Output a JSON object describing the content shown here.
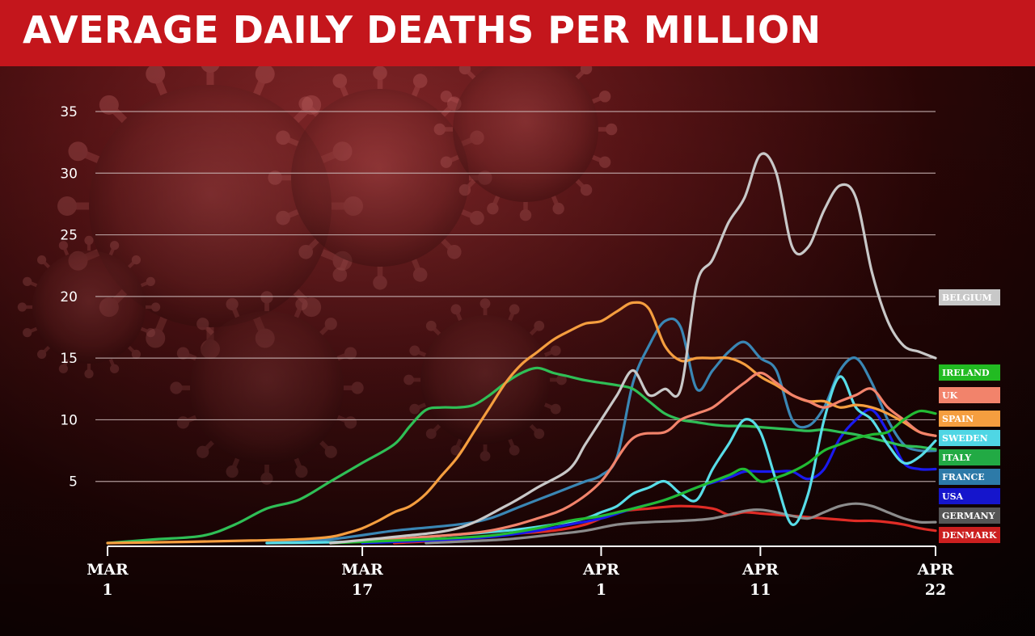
{
  "title": "AVERAGE DAILY DEATHS PER MILLION",
  "colors": {
    "title_bar": "#c4161c",
    "gridline": "#c8b4b4"
  },
  "chart_data": {
    "type": "line",
    "title": "AVERAGE DAILY DEATHS PER MILLION",
    "xlabel": "",
    "ylabel": "",
    "x_ticks": [
      {
        "day": 0,
        "line1": "MAR",
        "line2": "1"
      },
      {
        "day": 16,
        "line1": "MAR",
        "line2": "17"
      },
      {
        "day": 31,
        "line1": "APR",
        "line2": "1"
      },
      {
        "day": 41,
        "line1": "APR",
        "line2": "11"
      },
      {
        "day": 52,
        "line1": "APR",
        "line2": "22"
      }
    ],
    "y_ticks": [
      5,
      10,
      15,
      20,
      25,
      30,
      35
    ],
    "ylim": [
      0,
      35
    ],
    "xlim": [
      0,
      52
    ],
    "grid": true,
    "legend_position": "right",
    "series": [
      {
        "name": "BELGIUM",
        "color": "#c8c8c8",
        "label_color": "#c8c8c8",
        "label_text": "#ffffff",
        "x": [
          14,
          18,
          22,
          25,
          27,
          29,
          30,
          31,
          32,
          33,
          34,
          35,
          36,
          37,
          38,
          39,
          40,
          41,
          42,
          43,
          44,
          45,
          46,
          47,
          48,
          49,
          50,
          51,
          52
        ],
        "y": [
          0,
          0.5,
          1.2,
          3,
          4.5,
          6,
          8,
          10,
          12,
          14,
          12,
          12.5,
          12.5,
          21,
          23,
          26,
          28,
          31.5,
          30,
          24,
          24,
          27,
          29,
          28,
          22,
          18,
          16,
          15.5,
          15
        ]
      },
      {
        "name": "IRELAND",
        "color": "#22bb33",
        "label_color": "#22bb22",
        "label_text": "#ffffff",
        "x": [
          14,
          20,
          24,
          27,
          29,
          30,
          31,
          33,
          35,
          37,
          39,
          40,
          41,
          42,
          43,
          44,
          45,
          46,
          47,
          48,
          49,
          50,
          51,
          52
        ],
        "y": [
          0,
          0.3,
          0.6,
          1.2,
          1.8,
          2,
          2.2,
          2.8,
          3.5,
          4.5,
          5.5,
          6,
          5,
          5.3,
          5.8,
          6.5,
          7.5,
          8,
          8.5,
          8.8,
          9,
          10,
          10.7,
          10.5
        ]
      },
      {
        "name": "UK",
        "color": "#f2836b",
        "label_color": "#f2836b",
        "label_text": "#ffffff",
        "x": [
          14,
          20,
          24,
          27,
          29,
          31,
          33,
          35,
          36,
          37,
          38,
          39,
          40,
          41,
          42,
          43,
          44,
          45,
          46,
          47,
          48,
          49,
          50,
          51,
          52
        ],
        "y": [
          0,
          0.5,
          1,
          2,
          3,
          5,
          8.5,
          9,
          10,
          10.5,
          11,
          12,
          13,
          13.8,
          13,
          12,
          11.5,
          11,
          11.5,
          12,
          12.5,
          11,
          10,
          9,
          8.7
        ]
      },
      {
        "name": "SPAIN",
        "color": "#f59e3f",
        "label_color": "#f59e3f",
        "label_text": "#ffffff",
        "x": [
          0,
          5,
          9,
          12,
          14,
          15,
          16,
          17,
          18,
          19,
          20,
          21,
          22,
          23,
          24,
          25,
          26,
          27,
          28,
          29,
          30,
          31,
          32,
          33,
          34,
          35,
          36,
          37,
          38,
          39,
          40,
          41,
          42,
          43,
          44,
          45,
          46,
          47,
          48,
          49,
          50,
          51,
          52
        ],
        "y": [
          0,
          0.1,
          0.2,
          0.3,
          0.5,
          0.8,
          1.2,
          1.8,
          2.5,
          3,
          4,
          5.5,
          7,
          9,
          11,
          13,
          14.5,
          15.5,
          16.5,
          17.2,
          17.8,
          18,
          18.8,
          19.5,
          19,
          16,
          14.8,
          15,
          15,
          15,
          14.5,
          13.5,
          12.8,
          12,
          11.5,
          11.5,
          11,
          11.2,
          11,
          10.5,
          9.8,
          9,
          8.7
        ]
      },
      {
        "name": "SWEDEN",
        "color": "#58dde8",
        "label_color": "#4fd6e4",
        "label_text": "#ffffff",
        "x": [
          10,
          15,
          20,
          25,
          28,
          30,
          31,
          32,
          33,
          34,
          35,
          36,
          37,
          38,
          39,
          40,
          41,
          42,
          43,
          44,
          45,
          46,
          47,
          48,
          49,
          50,
          51,
          52
        ],
        "y": [
          0,
          0.1,
          0.5,
          1,
          1.5,
          2,
          2.5,
          3,
          4,
          4.5,
          5,
          4,
          3.5,
          6,
          8,
          10,
          9,
          5,
          1.5,
          4,
          10,
          13.5,
          11,
          10,
          8,
          6.5,
          7,
          8.3
        ]
      },
      {
        "name": "ITALY",
        "color": "#2fbf56",
        "label_color": "#22aa44",
        "label_text": "#ffffff",
        "x": [
          0,
          3,
          6,
          8,
          10,
          12,
          14,
          16,
          18,
          19,
          20,
          21,
          22,
          23,
          24,
          25,
          26,
          27,
          28,
          29,
          30,
          31,
          32,
          33,
          34,
          35,
          36,
          37,
          38,
          39,
          40,
          41,
          42,
          43,
          44,
          45,
          46,
          47,
          48,
          49,
          50,
          51,
          52
        ],
        "y": [
          0,
          0.3,
          0.6,
          1.5,
          2.8,
          3.5,
          5,
          6.5,
          8,
          9.5,
          10.8,
          11,
          11,
          11.2,
          12,
          13,
          13.8,
          14.2,
          13.8,
          13.5,
          13.2,
          13,
          12.8,
          12.5,
          11.5,
          10.5,
          10,
          9.8,
          9.6,
          9.5,
          9.5,
          9.4,
          9.3,
          9.2,
          9.1,
          9.2,
          9,
          8.8,
          8.5,
          8.2,
          7.9,
          7.8,
          7.6
        ]
      },
      {
        "name": "FRANCE",
        "color": "#3a86b4",
        "label_color": "#2d7aa8",
        "label_text": "#ffffff",
        "x": [
          10,
          14,
          18,
          22,
          24,
          26,
          28,
          29,
          30,
          31,
          32,
          33,
          34,
          35,
          36,
          37,
          38,
          39,
          40,
          41,
          42,
          43,
          44,
          45,
          46,
          47,
          48,
          49,
          50,
          51,
          52
        ],
        "y": [
          0,
          0.3,
          1,
          1.5,
          2,
          3,
          4,
          4.5,
          5,
          5.5,
          7,
          13,
          16,
          18,
          17.5,
          12.5,
          14,
          15.5,
          16.3,
          15,
          14,
          10,
          9.5,
          11,
          14,
          15,
          13,
          10,
          8,
          7.5,
          7.5
        ]
      },
      {
        "name": "USA",
        "color": "#1a1aee",
        "label_color": "#1515cc",
        "label_text": "#ffffff",
        "x": [
          16,
          20,
          24,
          27,
          29,
          31,
          33,
          35,
          37,
          39,
          40,
          41,
          42,
          43,
          44,
          45,
          46,
          47,
          48,
          49,
          50,
          51,
          52
        ],
        "y": [
          0,
          0.2,
          0.5,
          1,
          1.5,
          2,
          2.8,
          3.5,
          4.5,
          5.3,
          5.8,
          5.8,
          5.8,
          5.8,
          5.2,
          6,
          8.5,
          10,
          10.8,
          9,
          6.5,
          6,
          6
        ]
      },
      {
        "name": "GERMANY",
        "color": "#8c8c8c",
        "label_color": "#555555",
        "label_text": "#ffffff",
        "x": [
          20,
          25,
          28,
          30,
          32,
          34,
          36,
          38,
          40,
          41,
          42,
          43,
          44,
          45,
          46,
          47,
          48,
          49,
          50,
          51,
          52
        ],
        "y": [
          0,
          0.3,
          0.7,
          1,
          1.5,
          1.7,
          1.8,
          2,
          2.6,
          2.7,
          2.5,
          2.2,
          2,
          2.5,
          3,
          3.2,
          3,
          2.5,
          2,
          1.7,
          1.7
        ]
      },
      {
        "name": "DENMARK",
        "color": "#e02c26",
        "label_color": "#cc1f1f",
        "label_text": "#ffffff",
        "x": [
          18,
          22,
          25,
          28,
          30,
          32,
          34,
          36,
          38,
          39,
          40,
          41,
          42,
          43,
          44,
          45,
          46,
          47,
          48,
          49,
          50,
          51,
          52
        ],
        "y": [
          0,
          0.3,
          0.7,
          1,
          1.5,
          2.5,
          2.8,
          3,
          2.8,
          2.3,
          2.5,
          2.4,
          2.3,
          2.2,
          2.1,
          2,
          1.9,
          1.8,
          1.8,
          1.7,
          1.5,
          1.2,
          1
        ]
      }
    ]
  }
}
